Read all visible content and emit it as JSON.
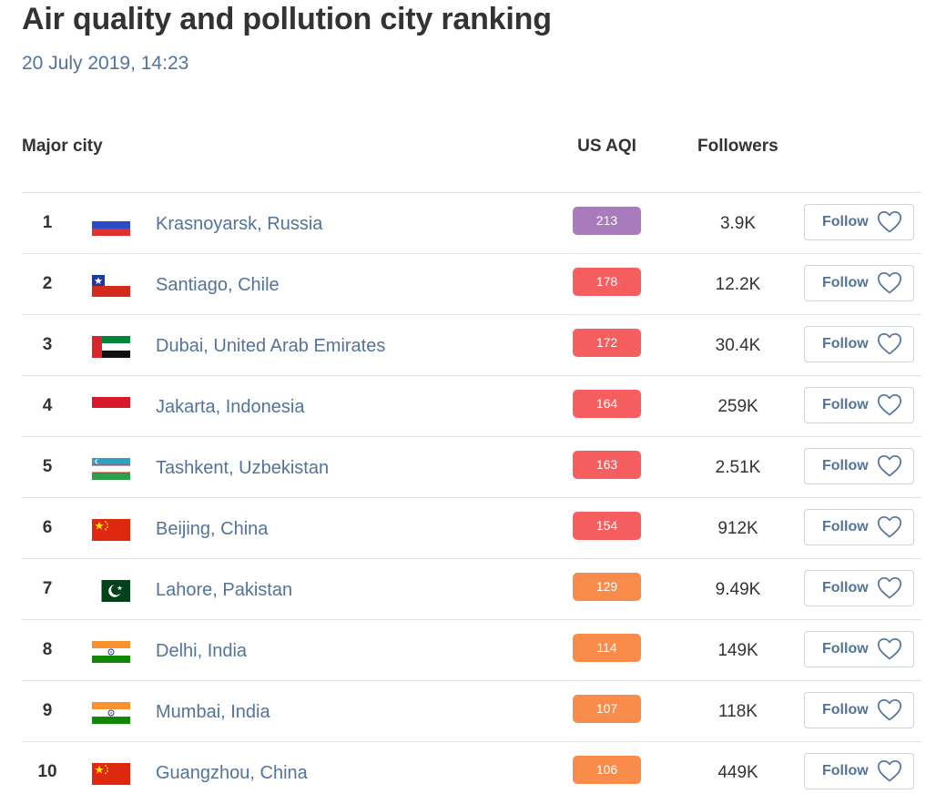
{
  "page": {
    "title": "Air quality and pollution city ranking",
    "date": "20 July 2019, 14:23"
  },
  "headers": {
    "city": "Major city",
    "aqi": "US AQI",
    "followers": "Followers"
  },
  "follow_label": "Follow",
  "colors": {
    "very_unhealthy": "#a97abc",
    "unhealthy": "#f65e5f",
    "unhealthy_sensitive": "#fa8c4b",
    "link_text": "#53739a"
  },
  "rows": [
    {
      "rank": "1",
      "city": "Krasnoyarsk, Russia",
      "flag": "russia",
      "aqi": "213",
      "aqi_color": "#a97abc",
      "followers": "3.9K"
    },
    {
      "rank": "2",
      "city": "Santiago, Chile",
      "flag": "chile",
      "aqi": "178",
      "aqi_color": "#f65e5f",
      "followers": "12.2K"
    },
    {
      "rank": "3",
      "city": "Dubai, United Arab Emirates",
      "flag": "uae",
      "aqi": "172",
      "aqi_color": "#f65e5f",
      "followers": "30.4K"
    },
    {
      "rank": "4",
      "city": "Jakarta, Indonesia",
      "flag": "indonesia",
      "aqi": "164",
      "aqi_color": "#f65e5f",
      "followers": "259K"
    },
    {
      "rank": "5",
      "city": "Tashkent, Uzbekistan",
      "flag": "uzbekistan",
      "aqi": "163",
      "aqi_color": "#f65e5f",
      "followers": "2.51K"
    },
    {
      "rank": "6",
      "city": "Beijing, China",
      "flag": "china",
      "aqi": "154",
      "aqi_color": "#f65e5f",
      "followers": "912K"
    },
    {
      "rank": "7",
      "city": "Lahore, Pakistan",
      "flag": "pakistan",
      "aqi": "129",
      "aqi_color": "#fa8c4b",
      "followers": "9.49K"
    },
    {
      "rank": "8",
      "city": "Delhi, India",
      "flag": "india",
      "aqi": "114",
      "aqi_color": "#fa8c4b",
      "followers": "149K"
    },
    {
      "rank": "9",
      "city": "Mumbai, India",
      "flag": "india",
      "aqi": "107",
      "aqi_color": "#fa8c4b",
      "followers": "118K"
    },
    {
      "rank": "10",
      "city": "Guangzhou, China",
      "flag": "china",
      "aqi": "106",
      "aqi_color": "#fa8c4b",
      "followers": "449K"
    }
  ]
}
